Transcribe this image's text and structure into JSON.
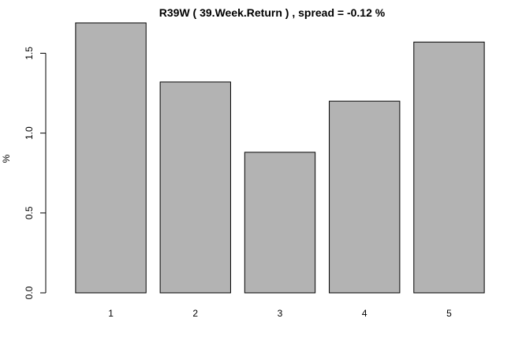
{
  "chart_data": {
    "type": "bar",
    "title": "R39W ( 39.Week.Return ) , spread = -0.12 %",
    "xlabel": "",
    "ylabel": "%",
    "categories": [
      "1",
      "2",
      "3",
      "4",
      "5"
    ],
    "values": [
      1.69,
      1.32,
      0.88,
      1.2,
      1.57
    ],
    "ylim": [
      0,
      1.69
    ],
    "yticks": [
      0.0,
      0.5,
      1.0,
      1.5
    ],
    "ytick_labels": [
      "0.0",
      "0.5",
      "1.0",
      "1.5"
    ],
    "bar_color": "#b3b3b3",
    "grid": false,
    "legend": "none"
  }
}
